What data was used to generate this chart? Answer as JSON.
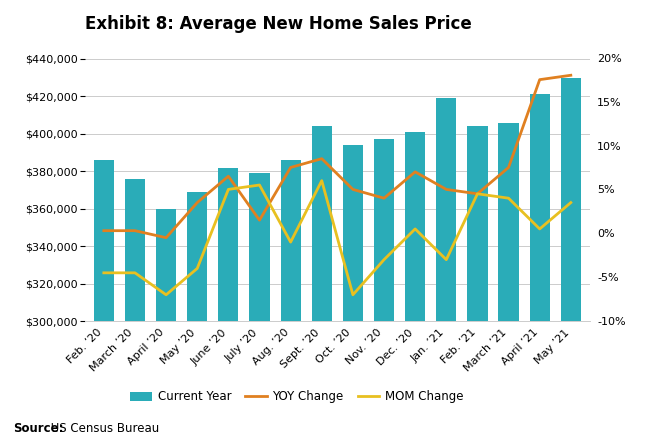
{
  "title": "Exhibit 8: Average New Home Sales Price",
  "source_bold": "Source:",
  "source_normal": " US Census Bureau",
  "categories": [
    "Feb. ’20",
    "March ’20",
    "April ’20",
    "May ’20",
    "June ’20",
    "July ’20",
    "Aug. ’20",
    "Sept. ’20",
    "Oct. ’20",
    "Nov. ’20",
    "Dec. ’20",
    "Jan. ’21",
    "Feb. ’21",
    "March ’21",
    "April ’21",
    "May ’21"
  ],
  "bar_values": [
    386000,
    376000,
    360000,
    369000,
    382000,
    379000,
    386000,
    404000,
    394000,
    397000,
    401000,
    419000,
    404000,
    406000,
    421000,
    430000
  ],
  "yoy_change": [
    0.3,
    0.3,
    -0.5,
    3.5,
    6.5,
    1.5,
    7.5,
    8.5,
    5.0,
    4.0,
    7.0,
    5.0,
    4.5,
    7.5,
    17.5,
    18.0
  ],
  "mom_change": [
    -4.5,
    -4.5,
    -7.0,
    -4.0,
    5.0,
    5.5,
    -1.0,
    6.0,
    -7.0,
    -3.0,
    0.5,
    -3.0,
    4.5,
    4.0,
    0.5,
    3.5
  ],
  "bar_color": "#2aacb8",
  "yoy_color": "#e08020",
  "mom_color": "#e8c020",
  "ylim_left": [
    300000,
    450000
  ],
  "ylim_right": [
    -10,
    22
  ],
  "yticks_left": [
    300000,
    320000,
    340000,
    360000,
    380000,
    400000,
    420000,
    440000
  ],
  "yticks_right": [
    -10,
    -5,
    0,
    5,
    10,
    15,
    20
  ],
  "background_color": "#ffffff",
  "grid_color": "#cccccc",
  "title_fontsize": 12,
  "tick_fontsize": 8,
  "legend_fontsize": 8.5,
  "source_fontsize": 8.5
}
